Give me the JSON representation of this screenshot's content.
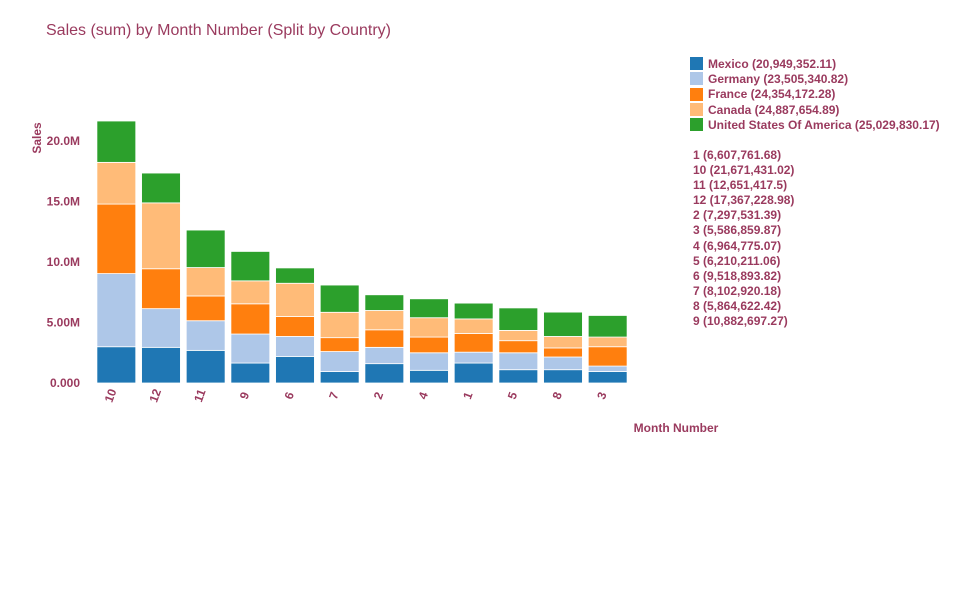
{
  "chart_data": {
    "type": "bar",
    "stacked": true,
    "title": "Sales (sum) by Month Number (Split by Country)",
    "xlabel": "Month Number",
    "ylabel": "Sales",
    "ylim": [
      0,
      21671431.02
    ],
    "yticks": [
      {
        "value": 0,
        "label": "0.000"
      },
      {
        "value": 5000000,
        "label": "5.00M"
      },
      {
        "value": 10000000,
        "label": "10.0M"
      },
      {
        "value": 15000000,
        "label": "15.0M"
      },
      {
        "value": 20000000,
        "label": "20.0M"
      }
    ],
    "categories": [
      "10",
      "12",
      "11",
      "9",
      "6",
      "7",
      "2",
      "4",
      "1",
      "5",
      "8",
      "3"
    ],
    "series": [
      {
        "name": "Mexico (20,949,352.11)",
        "color": "#1f77b4",
        "values": [
          3000000,
          2950000,
          2700000,
          1650000,
          2200000,
          950000,
          1600000,
          1050000,
          1650000,
          1100000,
          1100000,
          950000
        ]
      },
      {
        "name": "Germany (23,505,340.82)",
        "color": "#aec7e8",
        "values": [
          6050000,
          3200000,
          2450000,
          2400000,
          1650000,
          1650000,
          1350000,
          1450000,
          900000,
          1400000,
          1050000,
          450000
        ]
      },
      {
        "name": "France (24,354,172.28)",
        "color": "#ff7f0e",
        "values": [
          5750000,
          3300000,
          2050000,
          2500000,
          1650000,
          1150000,
          1450000,
          1300000,
          1550000,
          1000000,
          750000,
          1600000
        ]
      },
      {
        "name": "Canada (24,887,654.89)",
        "color": "#ffbb78",
        "values": [
          3450000,
          5450000,
          2350000,
          1900000,
          2750000,
          2100000,
          1600000,
          1600000,
          1200000,
          850000,
          950000,
          800000
        ]
      },
      {
        "name": "United States Of America (25,029,830.17)",
        "color": "#2ca02c",
        "values": [
          3421431,
          2467229,
          3101418,
          2432697,
          1268894,
          2252920,
          1297532,
          1564775,
          1307762,
          1860211,
          2014622,
          1786860
        ]
      }
    ],
    "totals": [
      "1 (6,607,761.68)",
      "10 (21,671,431.02)",
      "11 (12,651,417.5)",
      "12 (17,367,228.98)",
      "2 (7,297,531.39)",
      "3 (5,586,859.87)",
      "4 (6,964,775.07)",
      "5 (6,210,211.06)",
      "6 (9,518,893.82)",
      "7 (8,102,920.18)",
      "8 (5,864,622.42)",
      "9 (10,882,697.27)"
    ]
  }
}
